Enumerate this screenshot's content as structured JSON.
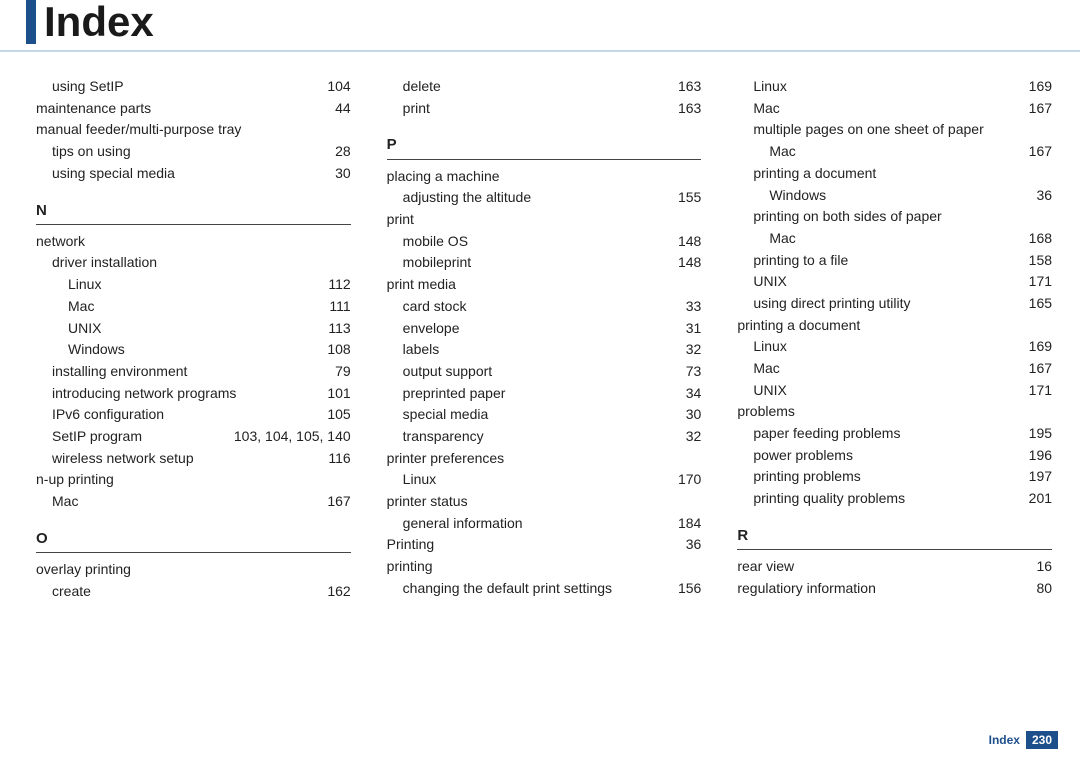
{
  "title": "Index",
  "footer": {
    "label": "Index",
    "page": "230"
  },
  "columns": [
    [
      {
        "t": "row",
        "ind": 1,
        "label": "using SetIP",
        "pg": "104"
      },
      {
        "t": "row",
        "ind": 0,
        "label": "maintenance parts",
        "pg": "44"
      },
      {
        "t": "row",
        "ind": 0,
        "label": "manual feeder/multi-purpose tray",
        "pg": ""
      },
      {
        "t": "row",
        "ind": 1,
        "label": "tips on using",
        "pg": "28"
      },
      {
        "t": "row",
        "ind": 1,
        "label": "using special media",
        "pg": "30"
      },
      {
        "t": "letter",
        "label": "N"
      },
      {
        "t": "row",
        "ind": 0,
        "label": "network",
        "pg": ""
      },
      {
        "t": "row",
        "ind": 1,
        "label": "driver installation",
        "pg": ""
      },
      {
        "t": "row",
        "ind": 2,
        "label": "Linux",
        "pg": "112"
      },
      {
        "t": "row",
        "ind": 2,
        "label": "Mac",
        "pg": "111"
      },
      {
        "t": "row",
        "ind": 2,
        "label": "UNIX",
        "pg": "113"
      },
      {
        "t": "row",
        "ind": 2,
        "label": "Windows",
        "pg": "108"
      },
      {
        "t": "row",
        "ind": 1,
        "label": "installing environment",
        "pg": "79"
      },
      {
        "t": "row",
        "ind": 1,
        "label": "introducing network programs",
        "pg": "101"
      },
      {
        "t": "row",
        "ind": 1,
        "label": "IPv6 configuration",
        "pg": "105"
      },
      {
        "t": "row",
        "ind": 1,
        "label": "SetIP program",
        "pg": "103, 104, 105, 140"
      },
      {
        "t": "row",
        "ind": 1,
        "label": "wireless network setup",
        "pg": "116"
      },
      {
        "t": "row",
        "ind": 0,
        "label": "n-up printing",
        "pg": ""
      },
      {
        "t": "row",
        "ind": 1,
        "label": "Mac",
        "pg": "167"
      },
      {
        "t": "letter",
        "label": "O"
      },
      {
        "t": "row",
        "ind": 0,
        "label": "overlay printing",
        "pg": ""
      },
      {
        "t": "row",
        "ind": 1,
        "label": "create",
        "pg": "162"
      }
    ],
    [
      {
        "t": "row",
        "ind": 1,
        "label": "delete",
        "pg": "163"
      },
      {
        "t": "row",
        "ind": 1,
        "label": "print",
        "pg": "163"
      },
      {
        "t": "letter",
        "label": "P"
      },
      {
        "t": "row",
        "ind": 0,
        "label": "placing a machine",
        "pg": ""
      },
      {
        "t": "row",
        "ind": 1,
        "label": "adjusting the altitude",
        "pg": "155"
      },
      {
        "t": "row",
        "ind": 0,
        "label": "print",
        "pg": ""
      },
      {
        "t": "row",
        "ind": 1,
        "label": "mobile OS",
        "pg": "148"
      },
      {
        "t": "row",
        "ind": 1,
        "label": "mobileprint",
        "pg": "148"
      },
      {
        "t": "row",
        "ind": 0,
        "label": "print media",
        "pg": ""
      },
      {
        "t": "row",
        "ind": 1,
        "label": "card stock",
        "pg": "33"
      },
      {
        "t": "row",
        "ind": 1,
        "label": "envelope",
        "pg": "31"
      },
      {
        "t": "row",
        "ind": 1,
        "label": "labels",
        "pg": "32"
      },
      {
        "t": "row",
        "ind": 1,
        "label": "output support",
        "pg": "73"
      },
      {
        "t": "row",
        "ind": 1,
        "label": "preprinted paper",
        "pg": "34"
      },
      {
        "t": "row",
        "ind": 1,
        "label": "special media",
        "pg": "30"
      },
      {
        "t": "row",
        "ind": 1,
        "label": "transparency",
        "pg": "32"
      },
      {
        "t": "row",
        "ind": 0,
        "label": "printer preferences",
        "pg": ""
      },
      {
        "t": "row",
        "ind": 1,
        "label": "Linux",
        "pg": "170"
      },
      {
        "t": "row",
        "ind": 0,
        "label": "printer status",
        "pg": ""
      },
      {
        "t": "row",
        "ind": 1,
        "label": "general information",
        "pg": "184"
      },
      {
        "t": "row",
        "ind": 0,
        "label": "Printing",
        "pg": "36"
      },
      {
        "t": "row",
        "ind": 0,
        "label": "printing",
        "pg": ""
      },
      {
        "t": "row",
        "ind": 1,
        "label": "changing the default print settings",
        "pg": "156"
      }
    ],
    [
      {
        "t": "row",
        "ind": 1,
        "label": "Linux",
        "pg": "169"
      },
      {
        "t": "row",
        "ind": 1,
        "label": "Mac",
        "pg": "167"
      },
      {
        "t": "row",
        "ind": 1,
        "label": "multiple pages on one sheet of paper",
        "pg": ""
      },
      {
        "t": "row",
        "ind": 2,
        "label": "Mac",
        "pg": "167"
      },
      {
        "t": "row",
        "ind": 1,
        "label": "printing a document",
        "pg": ""
      },
      {
        "t": "row",
        "ind": 2,
        "label": "Windows",
        "pg": "36"
      },
      {
        "t": "row",
        "ind": 1,
        "label": "printing on both sides of paper",
        "pg": ""
      },
      {
        "t": "row",
        "ind": 2,
        "label": "Mac",
        "pg": "168"
      },
      {
        "t": "row",
        "ind": 1,
        "label": "printing to a file",
        "pg": "158"
      },
      {
        "t": "row",
        "ind": 1,
        "label": "UNIX",
        "pg": "171"
      },
      {
        "t": "row",
        "ind": 1,
        "label": "using direct printing utility",
        "pg": "165"
      },
      {
        "t": "row",
        "ind": 0,
        "label": "printing a document",
        "pg": ""
      },
      {
        "t": "row",
        "ind": 1,
        "label": "Linux",
        "pg": "169"
      },
      {
        "t": "row",
        "ind": 1,
        "label": "Mac",
        "pg": "167"
      },
      {
        "t": "row",
        "ind": 1,
        "label": "UNIX",
        "pg": "171"
      },
      {
        "t": "row",
        "ind": 0,
        "label": "problems",
        "pg": ""
      },
      {
        "t": "row",
        "ind": 1,
        "label": "paper feeding problems",
        "pg": "195"
      },
      {
        "t": "row",
        "ind": 1,
        "label": "power problems",
        "pg": "196"
      },
      {
        "t": "row",
        "ind": 1,
        "label": "printing problems",
        "pg": "197"
      },
      {
        "t": "row",
        "ind": 1,
        "label": "printing quality problems",
        "pg": "201"
      },
      {
        "t": "letter",
        "label": "R"
      },
      {
        "t": "row",
        "ind": 0,
        "label": "rear view",
        "pg": "16"
      },
      {
        "t": "row",
        "ind": 0,
        "label": "regulatiory information",
        "pg": "80"
      }
    ]
  ]
}
